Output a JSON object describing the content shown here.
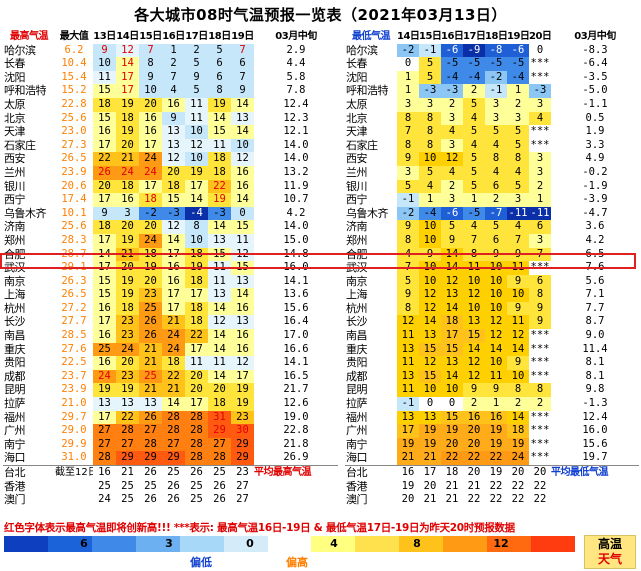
{
  "title": "各大城市08时气温预报一览表（2021年03月13日）",
  "high_table": {
    "headers": [
      "最高气温",
      "最大值",
      "13日",
      "14日",
      "15日",
      "16日",
      "17日",
      "18日",
      "19日",
      "03月中旬"
    ],
    "rows": [
      {
        "city": "哈尔滨",
        "record": "6.2",
        "days": [
          "9",
          "12",
          "7",
          "1",
          "2",
          "5",
          "7"
        ],
        "avg": "2.9"
      },
      {
        "city": "长春",
        "record": "10.4",
        "days": [
          "10",
          "14",
          "8",
          "2",
          "5",
          "6",
          "6"
        ],
        "avg": "4.4"
      },
      {
        "city": "沈阳",
        "record": "15.4",
        "days": [
          "11",
          "17",
          "9",
          "7",
          "9",
          "6",
          "7"
        ],
        "avg": "5.8"
      },
      {
        "city": "呼和浩特",
        "record": "15.2",
        "days": [
          "15",
          "17",
          "10",
          "4",
          "5",
          "8",
          "9"
        ],
        "avg": "7.8"
      },
      {
        "city": "太原",
        "record": "22.8",
        "days": [
          "18",
          "19",
          "20",
          "16",
          "11",
          "19",
          "14"
        ],
        "avg": "12.4"
      },
      {
        "city": "北京",
        "record": "25.6",
        "days": [
          "15",
          "18",
          "16",
          "9",
          "11",
          "14",
          "13"
        ],
        "avg": "12.3"
      },
      {
        "city": "天津",
        "record": "23.0",
        "days": [
          "16",
          "19",
          "16",
          "13",
          "10",
          "15",
          "14"
        ],
        "avg": "12.1"
      },
      {
        "city": "石家庄",
        "record": "27.3",
        "days": [
          "17",
          "20",
          "17",
          "13",
          "12",
          "11",
          "10"
        ],
        "avg": "14.0"
      },
      {
        "city": "西安",
        "record": "26.5",
        "days": [
          "22",
          "21",
          "24",
          "12",
          "10",
          "18",
          "12"
        ],
        "avg": "14.0"
      },
      {
        "city": "兰州",
        "record": "23.9",
        "days": [
          "26",
          "24",
          "24",
          "20",
          "19",
          "18",
          "16"
        ],
        "avg": "13.2"
      },
      {
        "city": "银川",
        "record": "20.6",
        "days": [
          "20",
          "18",
          "17",
          "18",
          "17",
          "22",
          "16"
        ],
        "avg": "11.9"
      },
      {
        "city": "西宁",
        "record": "17.4",
        "days": [
          "17",
          "16",
          "18",
          "15",
          "14",
          "19",
          "14"
        ],
        "avg": "10.7"
      },
      {
        "city": "乌鲁木齐",
        "record": "10.1",
        "days": [
          "9",
          "3",
          "-2",
          "-3",
          "-4",
          "-3",
          "0"
        ],
        "avg": "4.2"
      },
      {
        "city": "济南",
        "record": "25.6",
        "days": [
          "18",
          "20",
          "20",
          "12",
          "8",
          "14",
          "15"
        ],
        "avg": "14.0"
      },
      {
        "city": "郑州",
        "record": "28.3",
        "days": [
          "17",
          "19",
          "24",
          "14",
          "10",
          "13",
          "11"
        ],
        "avg": "15.0"
      },
      {
        "city": "合肥",
        "record": "28.7",
        "days": [
          "14",
          "21",
          "18",
          "17",
          "18",
          "15",
          "12"
        ],
        "avg": "14.8"
      },
      {
        "city": "武汉",
        "record": "29.1",
        "days": [
          "17",
          "20",
          "19",
          "16",
          "19",
          "11",
          "15"
        ],
        "avg": "16.0"
      },
      {
        "city": "南京",
        "record": "26.3",
        "days": [
          "15",
          "19",
          "20",
          "16",
          "18",
          "11",
          "13"
        ],
        "avg": "14.1"
      },
      {
        "city": "上海",
        "record": "26.5",
        "days": [
          "15",
          "19",
          "23",
          "17",
          "17",
          "13",
          "14"
        ],
        "avg": "13.6"
      },
      {
        "city": "杭州",
        "record": "27.2",
        "days": [
          "16",
          "18",
          "25",
          "17",
          "18",
          "14",
          "16"
        ],
        "avg": "15.6"
      },
      {
        "city": "长沙",
        "record": "27.7",
        "days": [
          "17",
          "23",
          "26",
          "21",
          "18",
          "12",
          "13"
        ],
        "avg": "16.4"
      },
      {
        "city": "南昌",
        "record": "28.5",
        "days": [
          "16",
          "23",
          "26",
          "24",
          "22",
          "14",
          "16"
        ],
        "avg": "17.0"
      },
      {
        "city": "重庆",
        "record": "27.6",
        "days": [
          "25",
          "24",
          "21",
          "24",
          "17",
          "14",
          "16"
        ],
        "avg": "16.6"
      },
      {
        "city": "贵阳",
        "record": "22.5",
        "days": [
          "16",
          "20",
          "21",
          "18",
          "11",
          "11",
          "12"
        ],
        "avg": "14.1"
      },
      {
        "city": "成都",
        "record": "23.7",
        "days": [
          "24",
          "23",
          "25",
          "22",
          "20",
          "14",
          "17"
        ],
        "avg": "16.5"
      },
      {
        "city": "昆明",
        "record": "23.9",
        "days": [
          "19",
          "19",
          "21",
          "21",
          "20",
          "20",
          "19"
        ],
        "avg": "21.7"
      },
      {
        "city": "拉萨",
        "record": "21.0",
        "days": [
          "13",
          "13",
          "13",
          "14",
          "17",
          "18",
          "19"
        ],
        "avg": "12.6"
      },
      {
        "city": "福州",
        "record": "29.7",
        "days": [
          "17",
          "22",
          "26",
          "28",
          "28",
          "31",
          "23"
        ],
        "avg": "19.0"
      },
      {
        "city": "广州",
        "record": "29.0",
        "days": [
          "27",
          "28",
          "27",
          "28",
          "28",
          "29",
          "30"
        ],
        "avg": "22.8"
      },
      {
        "city": "南宁",
        "record": "29.9",
        "days": [
          "27",
          "27",
          "28",
          "27",
          "28",
          "27",
          "29"
        ],
        "avg": "21.8"
      },
      {
        "city": "海口",
        "record": "31.0",
        "days": [
          "28",
          "29",
          "29",
          "29",
          "28",
          "28",
          "29"
        ],
        "avg": "26.9"
      }
    ],
    "extra_header": "截至12日",
    "extra_rows": [
      {
        "city": "台北",
        "days": [
          "16",
          "21",
          "26",
          "25",
          "26",
          "25",
          "23"
        ],
        "note": "平均最高气温"
      },
      {
        "city": "香港",
        "days": [
          "25",
          "25",
          "25",
          "26",
          "25",
          "26",
          "27"
        ],
        "note": ""
      },
      {
        "city": "澳门",
        "days": [
          "24",
          "25",
          "26",
          "26",
          "25",
          "26",
          "27"
        ],
        "note": ""
      }
    ]
  },
  "low_table": {
    "headers": [
      "最低气温",
      "14日",
      "15日",
      "16日",
      "17日",
      "18日",
      "19日",
      "20日",
      "03月中旬"
    ],
    "rows": [
      {
        "city": "哈尔滨",
        "days": [
          "-2",
          "-1",
          "-6",
          "-9",
          "-8",
          "-6",
          "0"
        ],
        "avg": "-8.3"
      },
      {
        "city": "长春",
        "days": [
          "0",
          "5",
          "-5",
          "-5",
          "-5",
          "-5",
          "***"
        ],
        "avg": "-6.4"
      },
      {
        "city": "沈阳",
        "days": [
          "1",
          "5",
          "-4",
          "-4",
          "-2",
          "-4",
          "***"
        ],
        "avg": "-3.5"
      },
      {
        "city": "呼和浩特",
        "days": [
          "1",
          "-3",
          "-3",
          "2",
          "-1",
          "1",
          "-3"
        ],
        "avg": "-5.0"
      },
      {
        "city": "太原",
        "days": [
          "3",
          "3",
          "2",
          "5",
          "3",
          "2",
          "3"
        ],
        "avg": "-1.1"
      },
      {
        "city": "北京",
        "days": [
          "8",
          "8",
          "3",
          "4",
          "3",
          "3",
          "4"
        ],
        "avg": "0.5"
      },
      {
        "city": "天津",
        "days": [
          "7",
          "8",
          "4",
          "5",
          "5",
          "5",
          "***"
        ],
        "avg": "1.9"
      },
      {
        "city": "石家庄",
        "days": [
          "8",
          "8",
          "3",
          "4",
          "4",
          "5",
          "***"
        ],
        "avg": "3.3"
      },
      {
        "city": "西安",
        "days": [
          "9",
          "10",
          "12",
          "5",
          "8",
          "8",
          "3"
        ],
        "avg": "4.9"
      },
      {
        "city": "兰州",
        "days": [
          "3",
          "5",
          "4",
          "5",
          "4",
          "4",
          "3"
        ],
        "avg": "-0.2"
      },
      {
        "city": "银川",
        "days": [
          "5",
          "4",
          "2",
          "5",
          "6",
          "5",
          "2"
        ],
        "avg": "-1.9"
      },
      {
        "city": "西宁",
        "days": [
          "-1",
          "1",
          "3",
          "1",
          "2",
          "3",
          "1"
        ],
        "avg": "-3.9"
      },
      {
        "city": "乌鲁木齐",
        "days": [
          "-2",
          "-4",
          "-6",
          "-5",
          "-7",
          "-11",
          "-11"
        ],
        "avg": "-4.7"
      },
      {
        "city": "济南",
        "days": [
          "9",
          "10",
          "5",
          "4",
          "5",
          "4",
          "6"
        ],
        "avg": "3.6"
      },
      {
        "city": "郑州",
        "days": [
          "8",
          "10",
          "9",
          "7",
          "6",
          "7",
          "3"
        ],
        "avg": "4.2"
      },
      {
        "city": "合肥",
        "days": [
          "4",
          "9",
          "14",
          "8",
          "9",
          "9",
          "7"
        ],
        "avg": "6.5"
      },
      {
        "city": "武汉",
        "days": [
          "7",
          "10",
          "14",
          "11",
          "10",
          "11",
          "***"
        ],
        "avg": "7.6"
      },
      {
        "city": "南京",
        "days": [
          "5",
          "10",
          "12",
          "10",
          "10",
          "9",
          "6"
        ],
        "avg": "5.6"
      },
      {
        "city": "上海",
        "days": [
          "9",
          "12",
          "13",
          "12",
          "10",
          "10",
          "8"
        ],
        "avg": "7.1"
      },
      {
        "city": "杭州",
        "days": [
          "8",
          "12",
          "14",
          "10",
          "10",
          "9",
          "9"
        ],
        "avg": "7.7"
      },
      {
        "city": "长沙",
        "days": [
          "12",
          "14",
          "18",
          "13",
          "12",
          "11",
          "9"
        ],
        "avg": "8.7"
      },
      {
        "city": "南昌",
        "days": [
          "11",
          "13",
          "17",
          "15",
          "12",
          "12",
          "***"
        ],
        "avg": "9.0"
      },
      {
        "city": "重庆",
        "days": [
          "13",
          "15",
          "15",
          "14",
          "14",
          "14",
          "***"
        ],
        "avg": "11.4"
      },
      {
        "city": "贵阳",
        "days": [
          "11",
          "12",
          "13",
          "12",
          "10",
          "9",
          "***"
        ],
        "avg": "8.1"
      },
      {
        "city": "成都",
        "days": [
          "13",
          "15",
          "14",
          "12",
          "11",
          "10",
          "***"
        ],
        "avg": "8.1"
      },
      {
        "city": "昆明",
        "days": [
          "11",
          "10",
          "10",
          "9",
          "9",
          "8",
          "8"
        ],
        "avg": "9.8"
      },
      {
        "city": "拉萨",
        "days": [
          "-1",
          "0",
          "0",
          "2",
          "1",
          "2",
          "2"
        ],
        "avg": "-1.3"
      },
      {
        "city": "福州",
        "days": [
          "13",
          "13",
          "15",
          "16",
          "16",
          "14",
          "***"
        ],
        "avg": "12.4"
      },
      {
        "city": "广州",
        "days": [
          "17",
          "19",
          "19",
          "20",
          "19",
          "18",
          "***"
        ],
        "avg": "16.0"
      },
      {
        "city": "南宁",
        "days": [
          "19",
          "19",
          "20",
          "20",
          "19",
          "19",
          "***"
        ],
        "avg": "15.6"
      },
      {
        "city": "海口",
        "days": [
          "21",
          "21",
          "22",
          "22",
          "22",
          "24",
          "***"
        ],
        "avg": "19.7"
      }
    ],
    "extra_rows": [
      {
        "city": "台北",
        "days": [
          "16",
          "17",
          "18",
          "20",
          "19",
          "20",
          "20"
        ],
        "note": "平均最低气温"
      },
      {
        "city": "香港",
        "days": [
          "19",
          "20",
          "21",
          "21",
          "22",
          "22",
          "22"
        ],
        "note": ""
      },
      {
        "city": "澳门",
        "days": [
          "20",
          "21",
          "21",
          "22",
          "22",
          "22",
          "22"
        ],
        "note": ""
      }
    ]
  },
  "highlight_city": "合肥",
  "footnote": "红色字体表示最高气温即将创新高!!! ***表示: 最高气温16日-19日 & 最低气温17日-19日为昨天20时预报数据",
  "legend": {
    "ticks": [
      "6",
      "3",
      "0",
      "4",
      "8",
      "12"
    ],
    "label_cold": "偏低",
    "label_warm": "偏高",
    "box_line1": "高温",
    "box_line2": "天气",
    "colors": [
      "#0d3fbf",
      "#1a63d8",
      "#3f8ae8",
      "#6db0f2",
      "#a8d8f8",
      "#d4ecfa",
      "#ffffff",
      "#ffff80",
      "#ffe14d",
      "#ffc21a",
      "#ff9a14",
      "#ff6a10",
      "#ff3c10"
    ]
  }
}
